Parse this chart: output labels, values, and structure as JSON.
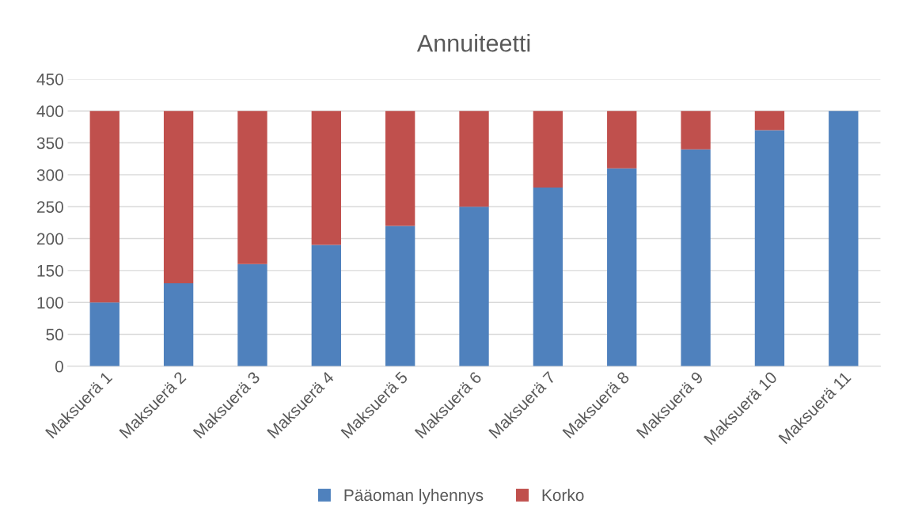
{
  "chart_data": {
    "type": "bar",
    "title": "Annuiteetti",
    "stacked": true,
    "categories": [
      "Maksuerä 1",
      "Maksuerä 2",
      "Maksuerä 3",
      "Maksuerä 4",
      "Maksuerä 5",
      "Maksuerä 6",
      "Maksuerä 7",
      "Maksuerä 8",
      "Maksuerä 9",
      "Maksuerä 10",
      "Maksuerä 11"
    ],
    "series": [
      {
        "name": "Pääoman lyhennys",
        "color": "#4f81bd",
        "values": [
          100,
          130,
          160,
          190,
          220,
          250,
          280,
          310,
          340,
          370,
          400
        ]
      },
      {
        "name": "Korko",
        "color": "#c0504d",
        "values": [
          300,
          270,
          240,
          210,
          180,
          150,
          120,
          90,
          60,
          30,
          0
        ]
      }
    ],
    "ylim": [
      0,
      450
    ],
    "yticks": [
      0,
      50,
      100,
      150,
      200,
      250,
      300,
      350,
      400,
      450
    ],
    "grid": "y",
    "legend": "bottom"
  }
}
